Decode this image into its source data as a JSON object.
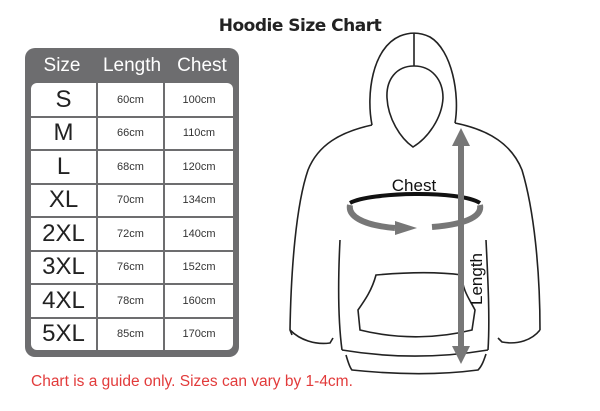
{
  "title": "Hoodie Size Chart",
  "table": {
    "headers": [
      "Size",
      "Length",
      "Chest"
    ],
    "rows": [
      {
        "size": "S",
        "length": "60cm",
        "chest": "100cm"
      },
      {
        "size": "M",
        "length": "66cm",
        "chest": "110cm"
      },
      {
        "size": "L",
        "length": "68cm",
        "chest": "120cm"
      },
      {
        "size": "XL",
        "length": "70cm",
        "chest": "134cm"
      },
      {
        "size": "2XL",
        "length": "72cm",
        "chest": "140cm"
      },
      {
        "size": "3XL",
        "length": "76cm",
        "chest": "152cm"
      },
      {
        "size": "4XL",
        "length": "78cm",
        "chest": "160cm"
      },
      {
        "size": "5XL",
        "length": "85cm",
        "chest": "170cm"
      }
    ]
  },
  "diagram": {
    "chest_label": "Chest",
    "length_label": "Length"
  },
  "note": "Chart is a guide only. Sizes can vary by 1-4cm.",
  "colors": {
    "table": "#6d6d6f",
    "note": "#e23b3b",
    "arrow": "#777777"
  }
}
